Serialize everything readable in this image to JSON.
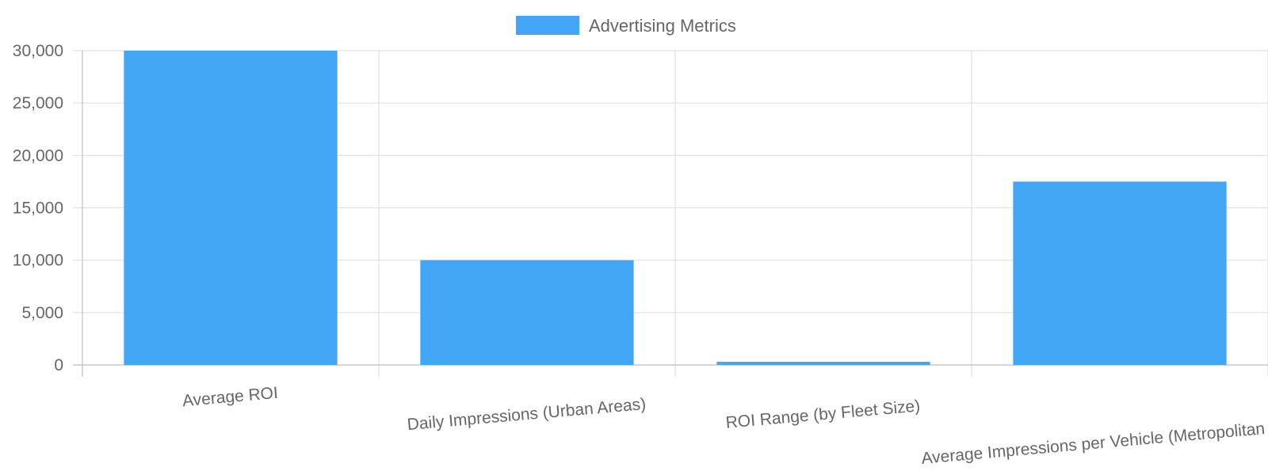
{
  "chart_data": {
    "type": "bar",
    "categories": [
      "Average ROI",
      "Daily Impressions (Urban Areas)",
      "ROI Range (by Fleet Size)",
      "Average Impressions per Vehicle (Metropolitan Areas)"
    ],
    "series": [
      {
        "name": "Advertising Metrics",
        "values": [
          30000,
          10000,
          300,
          17500
        ]
      }
    ],
    "ylim": [
      0,
      30000
    ],
    "yticks": [
      "0",
      "5,000",
      "10,000",
      "15,000",
      "20,000",
      "25,000",
      "30,000"
    ],
    "grid": true,
    "legend_position": "top-center",
    "colors": {
      "bar": "#42a5f5",
      "grid": "#e0e0e0",
      "text": "#666666"
    }
  }
}
